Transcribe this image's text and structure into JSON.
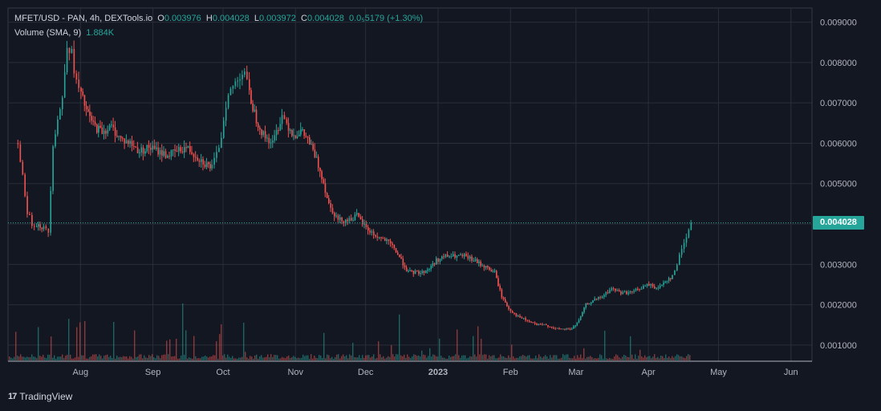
{
  "header": {
    "symbol_line": "MFET/USD - PAN, 4h, DEXTools.io",
    "o_label": "O",
    "o_value": "0.003976",
    "h_label": "H",
    "h_value": "0.004028",
    "l_label": "L",
    "l_value": "0.003972",
    "c_label": "C",
    "c_value": "0.004028",
    "change": "0.0₅5179 (+1.30%)",
    "volume_label": "Volume (SMA, 9)",
    "volume_value": "1.884K"
  },
  "last_price_label": "0.004028",
  "brand": {
    "name": "TradingView",
    "logo_text": "17"
  },
  "colors": {
    "background": "#131722",
    "up": "#26a69a",
    "down": "#ef5350",
    "grid": "#2a2e39",
    "text": "#b2b5be"
  },
  "chart_data": {
    "type": "candlestick",
    "title": "MFET/USD - PAN, 4h, DEXTools.io",
    "y_ticks": [
      "0.001000",
      "0.002000",
      "0.003000",
      "0.004000",
      "0.005000",
      "0.006000",
      "0.007000",
      "0.008000",
      "0.009000"
    ],
    "x_ticks": [
      "Aug",
      "Sep",
      "Oct",
      "Nov",
      "Dec",
      "2023",
      "Feb",
      "Mar",
      "Apr",
      "May",
      "Jun"
    ],
    "ylim": [
      0.0006,
      0.00935
    ],
    "last_price": 0.004028,
    "series": [
      {
        "name": "MFET/USD",
        "dates": [
          "2022-07-05",
          "2022-07-07",
          "2022-07-09",
          "2022-07-11",
          "2022-07-13",
          "2022-07-16",
          "2022-07-18",
          "2022-07-20",
          "2022-07-22",
          "2022-07-24",
          "2022-07-26",
          "2022-07-28",
          "2022-07-30",
          "2022-08-01",
          "2022-08-04",
          "2022-08-07",
          "2022-08-10",
          "2022-08-14",
          "2022-08-18",
          "2022-08-22",
          "2022-08-26",
          "2022-08-30",
          "2022-09-03",
          "2022-09-07",
          "2022-09-11",
          "2022-09-15",
          "2022-09-19",
          "2022-09-23",
          "2022-09-26",
          "2022-09-28",
          "2022-09-30",
          "2022-10-02",
          "2022-10-04",
          "2022-10-06",
          "2022-10-08",
          "2022-10-10",
          "2022-10-12",
          "2022-10-15",
          "2022-10-18",
          "2022-10-22",
          "2022-10-26",
          "2022-10-28",
          "2022-10-31",
          "2022-11-03",
          "2022-11-06",
          "2022-11-09",
          "2022-11-12",
          "2022-11-15",
          "2022-11-19",
          "2022-11-23",
          "2022-11-27",
          "2022-12-01",
          "2022-12-05",
          "2022-12-09",
          "2022-12-13",
          "2022-12-16",
          "2022-12-19",
          "2022-12-22",
          "2022-12-25",
          "2022-12-28",
          "2022-12-31",
          "2023-01-04",
          "2023-01-08",
          "2023-01-12",
          "2023-01-16",
          "2023-01-19",
          "2023-01-22",
          "2023-01-25",
          "2023-01-28",
          "2023-01-31",
          "2023-02-04",
          "2023-02-08",
          "2023-02-12",
          "2023-02-16",
          "2023-02-20",
          "2023-02-24",
          "2023-02-27",
          "2023-03-02",
          "2023-03-05",
          "2023-03-08",
          "2023-03-12",
          "2023-03-16",
          "2023-03-20",
          "2023-03-24",
          "2023-03-28",
          "2023-04-01",
          "2023-04-05",
          "2023-04-08",
          "2023-04-11",
          "2023-04-13",
          "2023-04-15",
          "2023-04-17",
          "2023-04-19"
        ],
        "close": [
          0.006,
          0.0052,
          0.0043,
          0.004,
          0.004,
          0.0039,
          0.0038,
          0.006,
          0.0066,
          0.0071,
          0.0085,
          0.0082,
          0.0075,
          0.0072,
          0.0067,
          0.0064,
          0.0063,
          0.0064,
          0.0061,
          0.006,
          0.0058,
          0.0059,
          0.0058,
          0.0057,
          0.0058,
          0.0059,
          0.0057,
          0.0055,
          0.0054,
          0.0057,
          0.0062,
          0.007,
          0.0073,
          0.0075,
          0.0077,
          0.0078,
          0.0072,
          0.0066,
          0.0062,
          0.006,
          0.0067,
          0.0065,
          0.0062,
          0.0063,
          0.0061,
          0.0057,
          0.0052,
          0.0045,
          0.0041,
          0.0041,
          0.0042,
          0.0039,
          0.0037,
          0.0036,
          0.0034,
          0.0031,
          0.0028,
          0.0028,
          0.0028,
          0.0029,
          0.0031,
          0.0032,
          0.0032,
          0.0032,
          0.0031,
          0.003,
          0.0029,
          0.0028,
          0.0022,
          0.0019,
          0.0017,
          0.0016,
          0.0015,
          0.0015,
          0.0014,
          0.0014,
          0.0014,
          0.0016,
          0.002,
          0.0021,
          0.0022,
          0.0024,
          0.0023,
          0.0023,
          0.0024,
          0.0025,
          0.0024,
          0.0026,
          0.0027,
          0.003,
          0.0034,
          0.0037,
          0.004028
        ],
        "volume_peaks": [
          1.3,
          1.2,
          1.8,
          1.9,
          1.7,
          1.5,
          1.4,
          1.3,
          1.4,
          1.6,
          1.8,
          1.5,
          1.3,
          1.2,
          1.3,
          1.3,
          1.2,
          1.1,
          1.3,
          1.3,
          1.2,
          1.0,
          1.1,
          1.0,
          1.8,
          1.6,
          1.3,
          1.0,
          1.0,
          1.2,
          1.1,
          1.0,
          1.1,
          1.0,
          1.3,
          1.0,
          1.1,
          0.9,
          1.0,
          0.9,
          1.0,
          0.8,
          0.9,
          1.8,
          1.2,
          1.1,
          2.0,
          0.8,
          1.2,
          1.0,
          1.3,
          1.0,
          0.9,
          1.1,
          1.4,
          1.2,
          1.1,
          0.9,
          1.2,
          0.8,
          0.9,
          1.7,
          0.9,
          1.0,
          1.1,
          0.8,
          0.9,
          1.2,
          1.0,
          0.9,
          1.1,
          1.2,
          1.1,
          0.7,
          1.0,
          1.1,
          1.0,
          0.9,
          1.2,
          1.1,
          1.0,
          1.3,
          1.1,
          1.2,
          1.1,
          1.0,
          1.0,
          1.1,
          1.0,
          1.2,
          1.3,
          1.6,
          1.9
        ]
      }
    ]
  }
}
